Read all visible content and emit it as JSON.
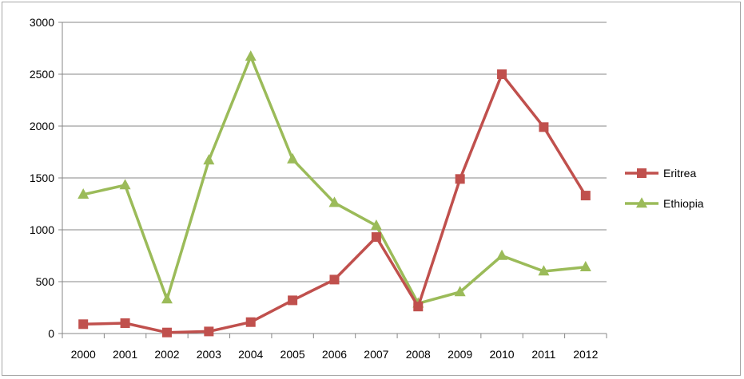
{
  "chart_data": {
    "type": "line",
    "categories": [
      "2000",
      "2001",
      "2002",
      "2003",
      "2004",
      "2005",
      "2006",
      "2007",
      "2008",
      "2009",
      "2010",
      "2011",
      "2012"
    ],
    "series": [
      {
        "name": "Eritrea",
        "color": "#c0504d",
        "marker": "square",
        "values": [
          90,
          100,
          10,
          20,
          110,
          320,
          520,
          930,
          260,
          1490,
          2500,
          1990,
          1330
        ]
      },
      {
        "name": "Ethiopia",
        "color": "#9bbb59",
        "marker": "triangle",
        "values": [
          1340,
          1430,
          330,
          1670,
          2670,
          1680,
          1260,
          1040,
          290,
          400,
          750,
          600,
          640
        ]
      }
    ],
    "ylim": [
      0,
      3000
    ],
    "yticks": [
      "0",
      "500",
      "1000",
      "1500",
      "2000",
      "2500",
      "3000"
    ],
    "grid": true,
    "legend": "right",
    "title": "",
    "xlabel": "",
    "ylabel": ""
  }
}
